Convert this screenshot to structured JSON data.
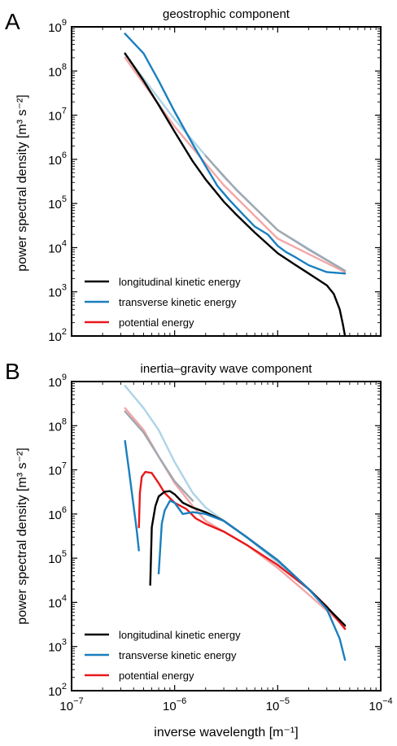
{
  "chart_data": [
    {
      "type": "line",
      "panel": "A",
      "title": "geostrophic component",
      "ylabel": "power spectral density [m³ s⁻²]",
      "xlabel": "",
      "xscale": "log",
      "yscale": "log",
      "xlim": [
        1e-07,
        0.0001
      ],
      "ylim": [
        100,
        1000000000.0
      ],
      "xticks": [],
      "yticks": [
        {
          "v": 100,
          "b": "10",
          "e": "2"
        },
        {
          "v": 1000,
          "b": "10",
          "e": "3"
        },
        {
          "v": 10000,
          "b": "10",
          "e": "4"
        },
        {
          "v": 100000,
          "b": "10",
          "e": "5"
        },
        {
          "v": 1000000,
          "b": "10",
          "e": "6"
        },
        {
          "v": 10000000,
          "b": "10",
          "e": "7"
        },
        {
          "v": 100000000,
          "b": "10",
          "e": "8"
        },
        {
          "v": 1000000000,
          "b": "10",
          "e": "9"
        }
      ],
      "legend": {
        "position": "lower-left",
        "entries": [
          {
            "label": "longitudinal kinetic energy",
            "color": "#000000"
          },
          {
            "label": "transverse kinetic energy",
            "color": "#1a7fbf"
          },
          {
            "label": "potential energy",
            "color": "#e8191c"
          }
        ]
      },
      "series": [
        {
          "color": "#aed4e7",
          "x": [
            3.3e-07,
            1e-06,
            3e-06,
            1e-05,
            4.5e-05
          ],
          "y": [
            240000000,
            8000000,
            400000,
            25000,
            3000
          ]
        },
        {
          "color": "#f4a6a6",
          "x": [
            3.3e-07,
            1e-06,
            3e-06,
            1e-05,
            4.5e-05
          ],
          "y": [
            200000000,
            5500000,
            260000,
            16000,
            2800
          ]
        },
        {
          "color": "#a0a7b0",
          "x": [
            2e-06,
            4e-06,
            1e-05,
            2e-05,
            4.5e-05
          ],
          "y": [
            1200000,
            200000,
            25000,
            9000,
            3000
          ]
        },
        {
          "color": "#1a7fbf",
          "x": [
            3.3e-07,
            5e-07,
            7e-07,
            1e-06,
            1.5e-06,
            2e-06,
            2.6e-06,
            3.4e-06,
            4.5e-06,
            6e-06,
            8e-06,
            1e-05,
            1.2e-05,
            1.5e-05,
            2e-05,
            3e-05,
            4.5e-05
          ],
          "y": [
            700000000,
            250000000,
            60000000,
            12000000,
            2200000,
            700000,
            250000,
            120000,
            60000,
            30000,
            20000,
            11000,
            8000,
            6000,
            4000,
            2800,
            2600
          ]
        },
        {
          "color": "#000000",
          "x": [
            3.3e-07,
            4e-07,
            5e-07,
            7e-07,
            1e-06,
            1.5e-06,
            2e-06,
            3e-06,
            4e-06,
            6e-06,
            8e-06,
            1e-05,
            1.5e-05,
            2e-05,
            3e-05,
            3.5e-05,
            4e-05,
            4.3e-05,
            4.5e-05
          ],
          "y": [
            250000000,
            130000000,
            60000000,
            17000000,
            4200000,
            900000,
            350000,
            110000,
            55000,
            22000,
            12000,
            7500,
            4000,
            2600,
            1400,
            900,
            400,
            180,
            100
          ]
        }
      ]
    },
    {
      "type": "line",
      "panel": "B",
      "title": "inertia–gravity wave component",
      "ylabel": "power spectral density [m³ s⁻²]",
      "xlabel": "inverse wavelength [m⁻¹]",
      "xscale": "log",
      "yscale": "log",
      "xlim": [
        1e-07,
        0.0001
      ],
      "ylim": [
        100,
        1000000000.0
      ],
      "xticks": [
        {
          "v": 1e-07,
          "b": "10",
          "e": "−7"
        },
        {
          "v": 1e-06,
          "b": "10",
          "e": "−6"
        },
        {
          "v": 1e-05,
          "b": "10",
          "e": "−5"
        },
        {
          "v": 0.0001,
          "b": "10",
          "e": "−4"
        }
      ],
      "yticks": [
        {
          "v": 100,
          "b": "10",
          "e": "2"
        },
        {
          "v": 1000,
          "b": "10",
          "e": "3"
        },
        {
          "v": 10000,
          "b": "10",
          "e": "4"
        },
        {
          "v": 100000,
          "b": "10",
          "e": "5"
        },
        {
          "v": 1000000,
          "b": "10",
          "e": "6"
        },
        {
          "v": 10000000,
          "b": "10",
          "e": "7"
        },
        {
          "v": 100000000,
          "b": "10",
          "e": "8"
        },
        {
          "v": 1000000000,
          "b": "10",
          "e": "9"
        }
      ],
      "legend": {
        "position": "lower-left",
        "entries": [
          {
            "label": "longitudinal kinetic energy",
            "color": "#000000"
          },
          {
            "label": "transverse kinetic energy",
            "color": "#1a7fbf"
          },
          {
            "label": "potential energy",
            "color": "#e8191c"
          }
        ]
      },
      "series": [
        {
          "color": "#aed4e7",
          "x": [
            3.3e-07,
            5e-07,
            7e-07,
            1e-06,
            1.5e-06,
            2e-06,
            3e-06,
            5e-06,
            1e-05,
            2e-05,
            4.5e-05
          ],
          "y": [
            800000000,
            250000000,
            80000000,
            15000000,
            3000000,
            1400000,
            700000,
            300000,
            80000,
            20000,
            3000
          ]
        },
        {
          "color": "#f4a6a6",
          "x": [
            3.3e-07,
            5e-07,
            7e-07,
            1e-06,
            1.5e-06,
            2e-06,
            3e-06,
            5e-06,
            1e-05,
            2e-05,
            4.5e-05
          ],
          "y": [
            250000000,
            80000000,
            20000000,
            5000000,
            1500000,
            700000,
            400000,
            200000,
            60000,
            15000,
            2800
          ]
        },
        {
          "color": "#a0a7b0",
          "x": [
            3.3e-07,
            5e-07,
            7e-07,
            1e-06,
            1.5e-06
          ],
          "y": [
            210000000,
            70000000,
            20000000,
            5500000,
            2000000
          ]
        },
        {
          "color": "#e8191c",
          "x": [
            4.5e-07,
            4.6e-07,
            4.8e-07,
            5.2e-07,
            6e-07,
            7e-07,
            8e-07,
            1e-06,
            1.3e-06,
            1.6e-06,
            2e-06,
            3e-06,
            5e-06,
            1e-05,
            2e-05,
            3e-05,
            4.5e-05
          ],
          "y": [
            500000,
            3000000,
            7000000,
            9000000,
            8500000,
            5000000,
            3000000,
            1800000,
            1300000,
            800000,
            600000,
            400000,
            200000,
            70000,
            20000,
            8000,
            2500
          ]
        },
        {
          "color": "#000000",
          "x": [
            5.8e-07,
            6e-07,
            6.5e-07,
            7e-07,
            8e-07,
            9e-07,
            1e-06,
            1.2e-06,
            1.5e-06,
            2e-06,
            3e-06,
            5e-06,
            1e-05,
            2e-05,
            4.5e-05
          ],
          "y": [
            25000,
            500000,
            1500000,
            2500000,
            3200000,
            3300000,
            2800000,
            1800000,
            1400000,
            1100000,
            700000,
            300000,
            90000,
            20000,
            3000
          ]
        },
        {
          "color": "#1a7fbf",
          "x": [
            3.3e-07,
            3.6e-07,
            4e-07,
            4.3e-07,
            4.5e-07
          ],
          "y": [
            45000000,
            10000000,
            1500000,
            400000,
            150000
          ]
        },
        {
          "color": "#1a7fbf",
          "x": [
            7e-07,
            7.5e-07,
            8e-07,
            9e-07,
            1e-06,
            1.2e-06,
            1.5e-06,
            2e-06,
            3e-06,
            5e-06,
            1e-05,
            2e-05,
            3e-05,
            4e-05,
            4.5e-05
          ],
          "y": [
            45000,
            600000,
            1200000,
            2000000,
            1800000,
            1000000,
            1100000,
            1000000,
            700000,
            300000,
            90000,
            20000,
            7000,
            1500,
            500
          ]
        }
      ]
    }
  ]
}
